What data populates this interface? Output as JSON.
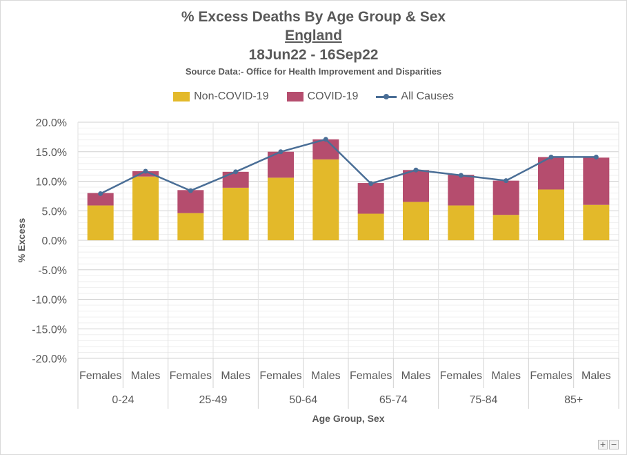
{
  "title": "% Excess Deaths By Age Group & Sex",
  "subtitle_region": "England",
  "subtitle_dates": "18Jun22 - 16Sep22",
  "source": "Source Data:- Office for Health Improvement and Disparities",
  "legend": {
    "non_covid": "Non-COVID-19",
    "covid": "COVID-19",
    "all_causes": "All Causes"
  },
  "colors": {
    "non_covid": "#e3b92a",
    "covid": "#b54d6e",
    "all_causes": "#4a6e96"
  },
  "zoom_controls": {
    "plus": "+",
    "minus": "−"
  },
  "chart_data": {
    "type": "bar",
    "stacked": true,
    "groups": [
      "0-24",
      "25-49",
      "50-64",
      "65-74",
      "75-84",
      "85+"
    ],
    "categories": [
      "Females",
      "Males",
      "Females",
      "Males",
      "Females",
      "Males",
      "Females",
      "Males",
      "Females",
      "Males",
      "Females",
      "Males"
    ],
    "series": [
      {
        "name": "Non-COVID-19",
        "type": "bar",
        "values": [
          5.9,
          10.8,
          4.6,
          8.9,
          10.6,
          13.7,
          4.5,
          6.5,
          5.9,
          4.3,
          8.6,
          6.0
        ]
      },
      {
        "name": "COVID-19",
        "type": "bar",
        "values": [
          2.1,
          0.9,
          3.9,
          2.7,
          4.4,
          3.4,
          5.2,
          5.4,
          5.2,
          5.8,
          5.5,
          8.0
        ]
      },
      {
        "name": "All Causes",
        "type": "line",
        "values": [
          7.9,
          11.7,
          8.4,
          11.6,
          15.0,
          17.1,
          9.6,
          11.9,
          11.0,
          10.1,
          14.1,
          14.1
        ]
      }
    ],
    "xlabel": "Age Group, Sex",
    "ylabel": "% Excess",
    "ylim": [
      -20,
      20
    ],
    "yticks": [
      20,
      15,
      10,
      5,
      0,
      -5,
      -10,
      -15,
      -20
    ],
    "ytick_labels": [
      "20.0%",
      "15.0%",
      "10.0%",
      "5.0%",
      "0.0%",
      "-5.0%",
      "-10.0%",
      "-15.0%",
      "-20.0%"
    ],
    "grid": true,
    "legend_position": "top"
  }
}
